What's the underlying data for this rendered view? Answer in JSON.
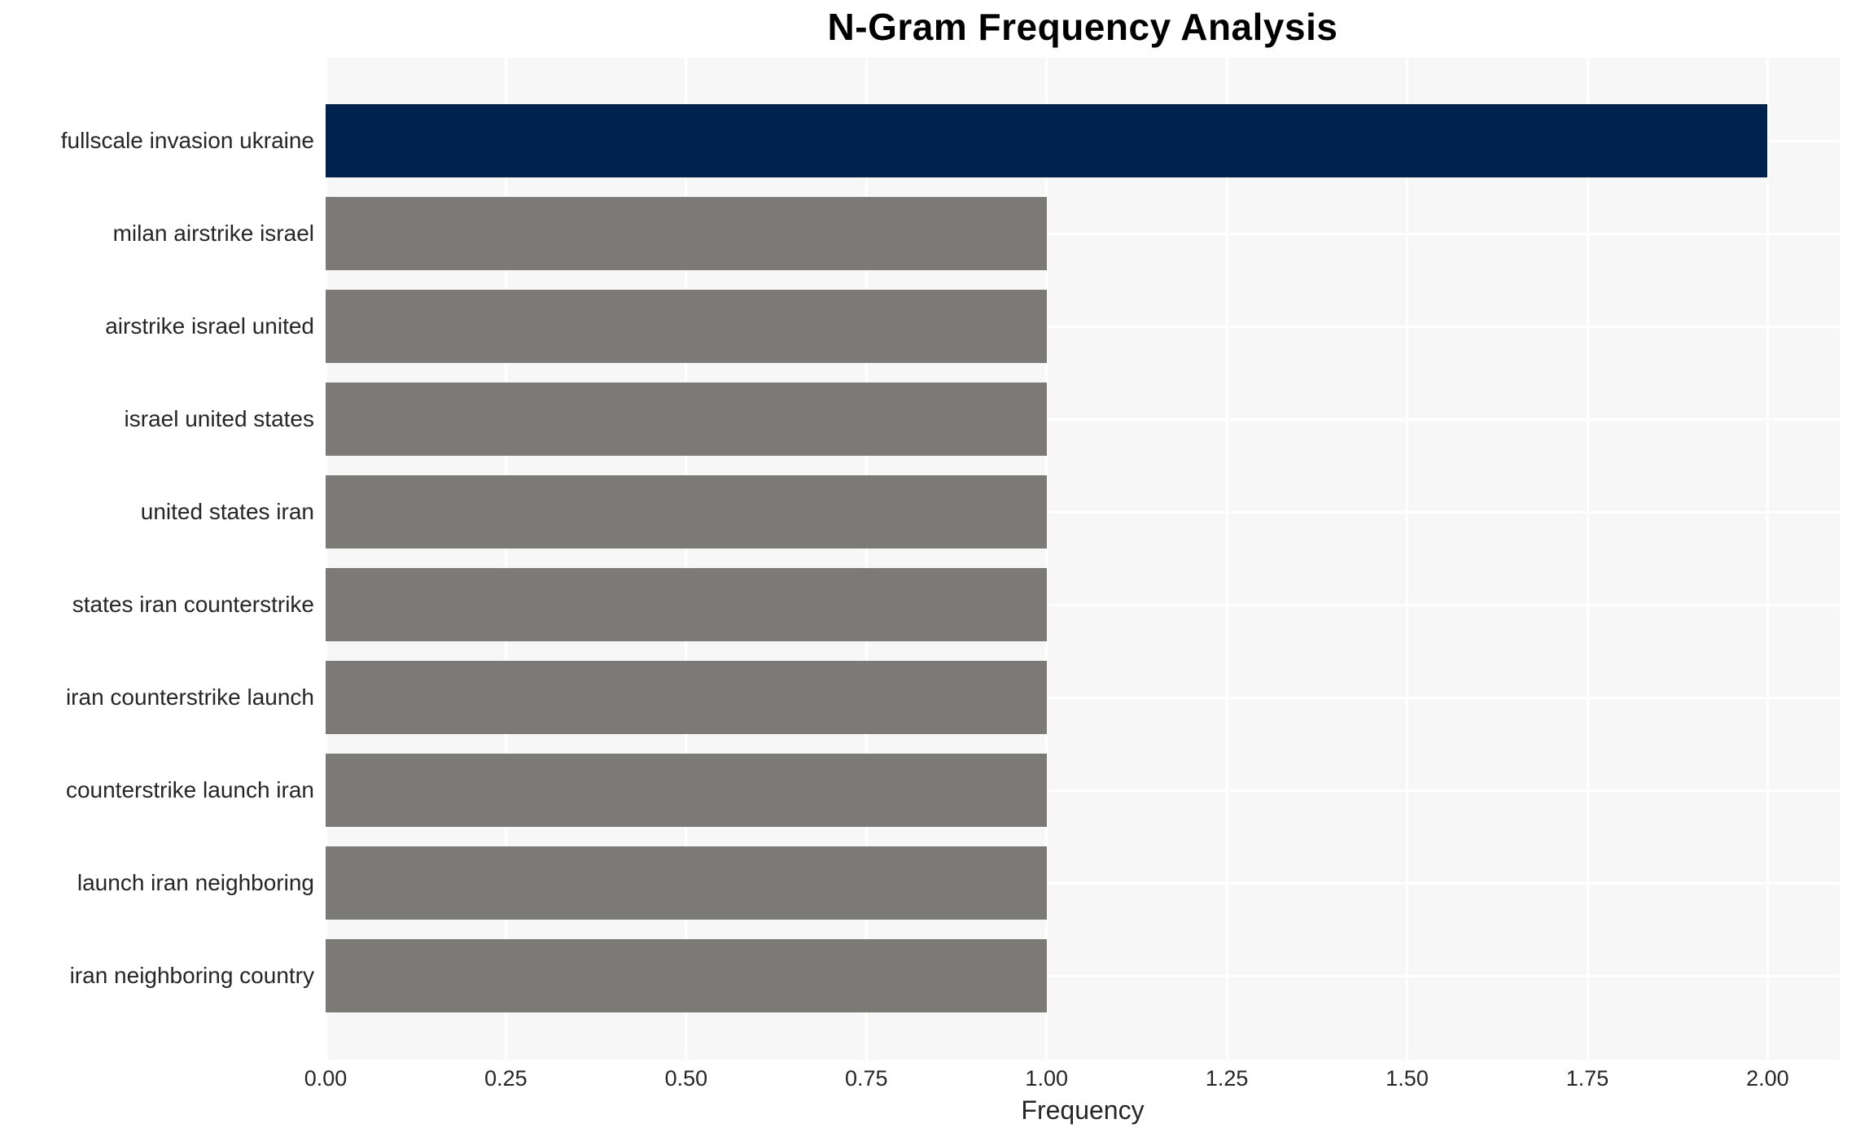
{
  "title": "N-Gram Frequency Analysis",
  "colors": {
    "bar_highlight": "#00224e",
    "bar_default": "#7b7a77",
    "plot_background": "#f7f7f7",
    "gridline": "#ffffff",
    "axis_text": "#262626",
    "title_text": "#000000"
  },
  "chart_data": {
    "type": "bar",
    "orientation": "horizontal",
    "title": "N-Gram Frequency Analysis",
    "xlabel": "Frequency",
    "ylabel": "",
    "categories": [
      "fullscale invasion ukraine",
      "milan airstrike israel",
      "airstrike israel united",
      "israel united states",
      "united states iran",
      "states iran counterstrike",
      "iran counterstrike launch",
      "counterstrike launch iran",
      "launch iran neighboring",
      "iran neighboring country"
    ],
    "values": [
      2,
      1,
      1,
      1,
      1,
      1,
      1,
      1,
      1,
      1
    ],
    "bar_colors": [
      "#00224e",
      "#7b7a77",
      "#7b7a77",
      "#7b7a77",
      "#7b7a77",
      "#7b7a77",
      "#7b7a77",
      "#7b7a77",
      "#7b7a77",
      "#7b7a77"
    ],
    "xlim": [
      0,
      2.0
    ],
    "x_ticks": [
      0.0,
      0.25,
      0.5,
      0.75,
      1.0,
      1.25,
      1.5,
      1.75,
      2.0
    ],
    "x_tick_labels": [
      "0.00",
      "0.25",
      "0.50",
      "0.75",
      "1.00",
      "1.25",
      "1.50",
      "1.75",
      "2.00"
    ],
    "grid": true,
    "legend": false
  }
}
